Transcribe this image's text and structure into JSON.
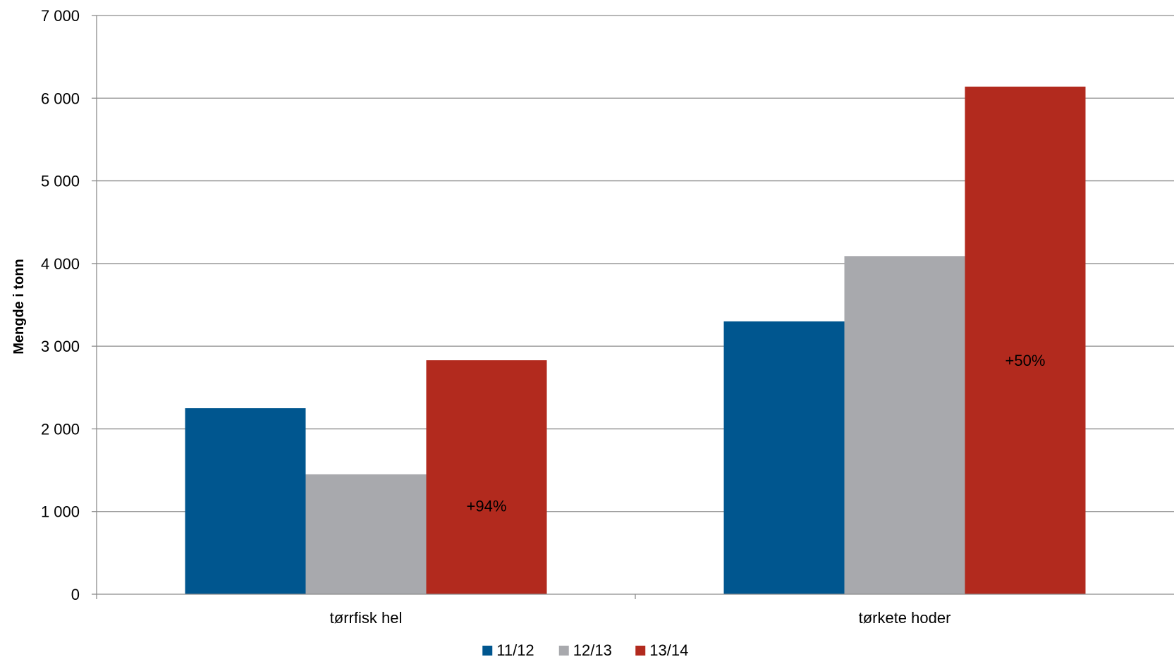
{
  "chart_data": {
    "type": "bar",
    "title": "",
    "xlabel": "",
    "ylabel": "Mengde i tonn",
    "ylim": [
      0,
      7000
    ],
    "yticks": [
      0,
      1000,
      2000,
      3000,
      4000,
      5000,
      6000,
      7000
    ],
    "ytick_labels": [
      "0",
      "1 000",
      "2 000",
      "3 000",
      "4 000",
      "5 000",
      "6 000",
      "7 000"
    ],
    "categories": [
      "tørrfisk hel",
      "tørkete hoder"
    ],
    "series": [
      {
        "name": "11/12",
        "color": "#00568F",
        "values": [
          2250,
          3300
        ]
      },
      {
        "name": "12/13",
        "color": "#A8A9AD",
        "values": [
          1450,
          4090
        ]
      },
      {
        "name": "13/14",
        "color": "#B22A1E",
        "values": [
          2830,
          6140
        ]
      }
    ],
    "annotations": [
      {
        "category": "tørrfisk hel",
        "series": "13/14",
        "text": "+94%",
        "y": 1070
      },
      {
        "category": "tørkete hoder",
        "series": "13/14",
        "text": "+50%",
        "y": 2830
      }
    ],
    "grid": true,
    "legend": "bottom-center"
  }
}
